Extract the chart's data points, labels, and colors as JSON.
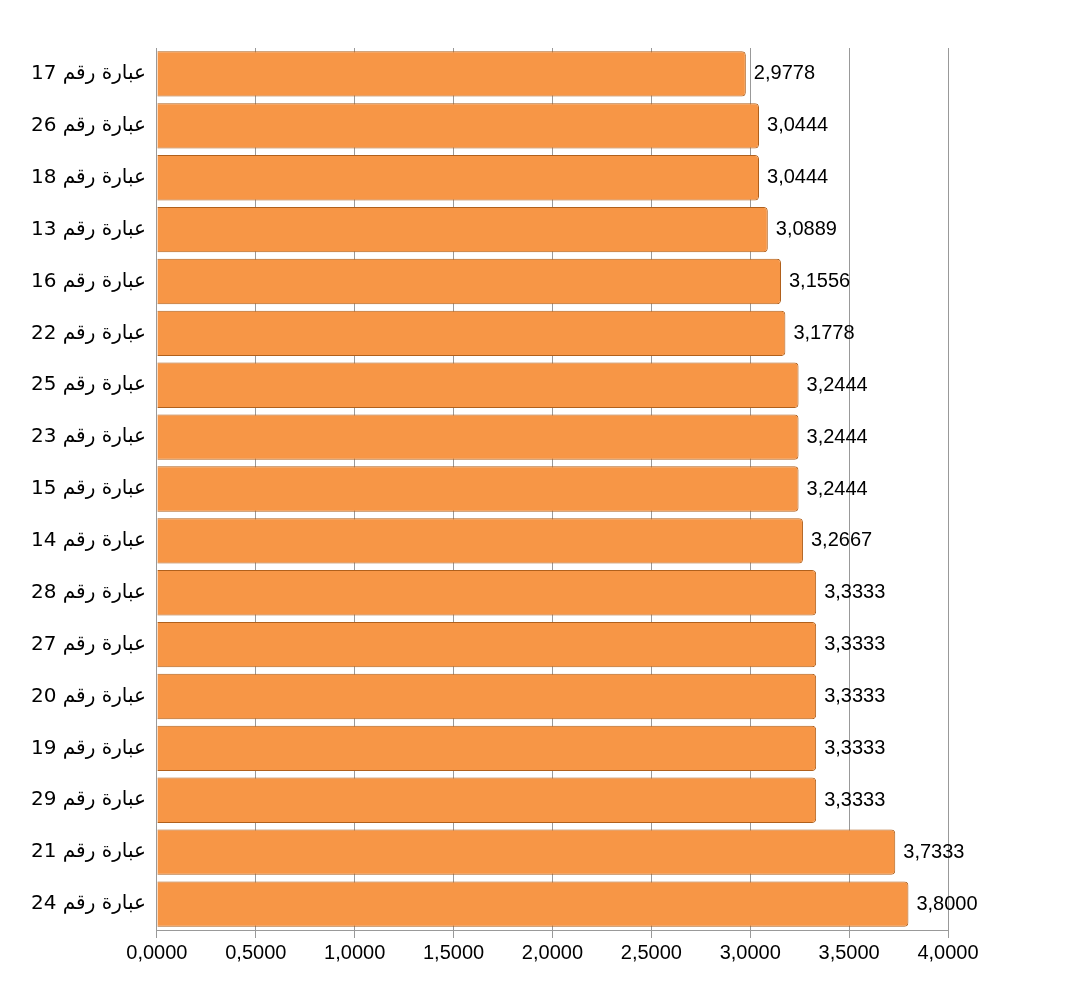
{
  "chart_data": {
    "type": "bar",
    "orientation": "horizontal",
    "categories": [
      "عبارة رقم 17",
      "عبارة رقم 26",
      "عبارة رقم 18",
      "عبارة رقم 13",
      "عبارة رقم 16",
      "عبارة رقم 22",
      "عبارة رقم 25",
      "عبارة رقم 23",
      "عبارة رقم 15",
      "عبارة رقم 14",
      "عبارة رقم 28",
      "عبارة رقم 27",
      "عبارة رقم 20",
      "عبارة رقم 19",
      "عبارة رقم 29",
      "عبارة رقم 21",
      "عبارة رقم 24"
    ],
    "values": [
      2.9778,
      3.0444,
      3.0444,
      3.0889,
      3.1556,
      3.1778,
      3.2444,
      3.2444,
      3.2444,
      3.2667,
      3.3333,
      3.3333,
      3.3333,
      3.3333,
      3.3333,
      3.7333,
      3.8
    ],
    "value_labels": [
      "2,9778",
      "3,0444",
      "3,0444",
      "3,0889",
      "3,1556",
      "3,1778",
      "3,2444",
      "3,2444",
      "3,2444",
      "3,2667",
      "3,3333",
      "3,3333",
      "3,3333",
      "3,3333",
      "3,3333",
      "3,7333",
      "3,8000"
    ],
    "color": "#f79646",
    "xlim": [
      0,
      4
    ],
    "xticks": [
      {
        "value": 0,
        "label": "0,0000"
      },
      {
        "value": 0.5,
        "label": "0,5000"
      },
      {
        "value": 1,
        "label": "1,0000"
      },
      {
        "value": 1.5,
        "label": "1,5000"
      },
      {
        "value": 2,
        "label": "2,0000"
      },
      {
        "value": 2.5,
        "label": "2,5000"
      },
      {
        "value": 3,
        "label": "3,0000"
      },
      {
        "value": 3.5,
        "label": "3,5000"
      },
      {
        "value": 4,
        "label": "4,0000"
      }
    ],
    "grid": "x"
  }
}
